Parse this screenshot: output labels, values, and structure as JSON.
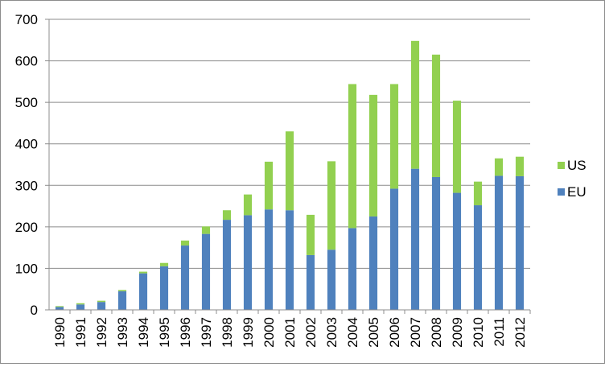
{
  "chart_data": {
    "type": "bar",
    "stacked": true,
    "title": "",
    "xlabel": "",
    "ylabel": "",
    "categories": [
      "1990",
      "1991",
      "1992",
      "1993",
      "1994",
      "1995",
      "1996",
      "1997",
      "1998",
      "1999",
      "2000",
      "2001",
      "2002",
      "2003",
      "2004",
      "2005",
      "2006",
      "2007",
      "2008",
      "2009",
      "2010",
      "2011",
      "2012"
    ],
    "series": [
      {
        "name": "EU",
        "color": "#4f81bd",
        "values": [
          7,
          13,
          19,
          45,
          88,
          105,
          155,
          183,
          217,
          228,
          242,
          240,
          132,
          145,
          197,
          225,
          292,
          340,
          320,
          282,
          252,
          323,
          322
        ]
      },
      {
        "name": "US",
        "color": "#92d050",
        "values": [
          2,
          3,
          3,
          3,
          4,
          8,
          12,
          18,
          23,
          50,
          115,
          190,
          97,
          213,
          347,
          293,
          252,
          308,
          295,
          222,
          57,
          42,
          47
        ]
      }
    ],
    "ylim": [
      0,
      700
    ],
    "yticks": [
      0,
      100,
      200,
      300,
      400,
      500,
      600,
      700
    ],
    "grid": true,
    "legend": "right",
    "legend_order": [
      "US",
      "EU"
    ]
  }
}
